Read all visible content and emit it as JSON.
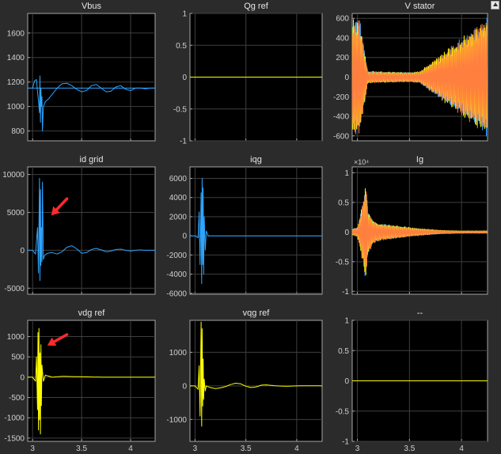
{
  "chart_data": [
    {
      "type": "line",
      "title": "Vbus",
      "xlabel": "",
      "ylabel": "",
      "xlim": [
        2.95,
        4.25
      ],
      "ylim": [
        720,
        1760
      ],
      "xticks": [
        3,
        3.5,
        4
      ],
      "xtick_labels": [
        "",
        "",
        ""
      ],
      "yticks": [
        800,
        1000,
        1200,
        1400,
        1600
      ],
      "ytick_labels": [
        "800",
        "1000",
        "1200",
        "1400",
        "1600"
      ],
      "grid": true,
      "series": [
        {
          "color": "#2fa4ff",
          "x": [
            2.95,
            3.0,
            3.02,
            3.04,
            3.05,
            3.06,
            3.07,
            3.075,
            3.08,
            3.085,
            3.09,
            3.095,
            3.1,
            3.11,
            3.13,
            3.16,
            3.2,
            3.25,
            3.3,
            3.35,
            3.4,
            3.45,
            3.5,
            3.55,
            3.6,
            3.65,
            3.7,
            3.75,
            3.8,
            3.85,
            3.9,
            3.95,
            4.0,
            4.05,
            4.1,
            4.15,
            4.2,
            4.25
          ],
          "y": [
            1150,
            1150,
            1210,
            1220,
            1120,
            1050,
            950,
            1250,
            870,
            1150,
            1000,
            1080,
            800,
            1000,
            1040,
            1060,
            1100,
            1150,
            1185,
            1190,
            1170,
            1140,
            1120,
            1130,
            1170,
            1180,
            1150,
            1120,
            1125,
            1160,
            1170,
            1140,
            1130,
            1150,
            1150,
            1145,
            1150,
            1150
          ]
        },
        {
          "color": "#2fa4ff",
          "x": [
            2.95,
            4.25
          ],
          "y": [
            1150,
            1150
          ]
        }
      ]
    },
    {
      "type": "line",
      "title": "Qg ref",
      "xlabel": "",
      "ylabel": "",
      "xlim": [
        2.95,
        4.25
      ],
      "ylim": [
        -1,
        1
      ],
      "xticks": [
        3,
        3.5,
        4
      ],
      "xtick_labels": [
        "",
        "",
        ""
      ],
      "yticks": [
        -1,
        -0.5,
        0,
        0.5,
        1
      ],
      "ytick_labels": [
        "-1",
        "-0.5",
        "0",
        "0.5",
        "1"
      ],
      "grid": true,
      "series": [
        {
          "color": "#ffff00",
          "x": [
            2.95,
            4.25
          ],
          "y": [
            0,
            0
          ]
        }
      ]
    },
    {
      "type": "line",
      "title": "V stator",
      "xlabel": "",
      "ylabel": "",
      "xlim": [
        2.95,
        4.25
      ],
      "ylim": [
        -650,
        650
      ],
      "xticks": [
        3,
        3.5,
        4
      ],
      "xtick_labels": [
        "",
        "",
        ""
      ],
      "yticks": [
        -600,
        -400,
        -200,
        0,
        200,
        400,
        600
      ],
      "ytick_labels": [
        "-600",
        "-400",
        "-200",
        "0",
        "200",
        "400",
        "600"
      ],
      "grid": true,
      "series": [
        {
          "color": "#2fa4ff",
          "envelope_x": [
            2.95,
            3.0,
            3.02,
            3.1,
            3.5,
            3.6,
            4.25
          ],
          "envelope_y": [
            600,
            600,
            620,
            60,
            50,
            60,
            620
          ]
        },
        {
          "color": "#ffff00",
          "envelope_x": [
            2.95,
            3.0,
            3.02,
            3.1,
            3.5,
            3.6,
            4.25
          ],
          "envelope_y": [
            600,
            600,
            620,
            60,
            50,
            60,
            620
          ]
        },
        {
          "color": "#ff7f3f",
          "envelope_x": [
            2.95,
            3.0,
            3.02,
            3.1,
            3.5,
            3.6,
            4.25
          ],
          "envelope_y": [
            600,
            600,
            620,
            60,
            50,
            60,
            620
          ]
        }
      ]
    },
    {
      "type": "line",
      "title": "id grid",
      "xlabel": "",
      "ylabel": "",
      "xlim": [
        2.95,
        4.25
      ],
      "ylim": [
        -5800,
        11000
      ],
      "xticks": [
        3,
        3.5,
        4
      ],
      "xtick_labels": [
        "",
        "",
        ""
      ],
      "yticks": [
        -5000,
        0,
        5000,
        10000
      ],
      "ytick_labels": [
        "-5000",
        "0",
        "5000",
        "10000"
      ],
      "grid": true,
      "annotation_arrow": {
        "from": [
          3.35,
          6800
        ],
        "to": [
          3.19,
          4600
        ],
        "color": "#ff2a2a"
      },
      "series": [
        {
          "color": "#2fa4ff",
          "x": [
            2.95,
            3.0,
            3.03,
            3.05,
            3.06,
            3.07,
            3.075,
            3.08,
            3.085,
            3.09,
            3.095,
            3.1,
            3.11,
            3.12,
            3.15,
            3.2,
            3.25,
            3.3,
            3.35,
            3.4,
            3.45,
            3.5,
            3.55,
            3.6,
            3.65,
            3.7,
            3.75,
            3.8,
            3.85,
            3.9,
            3.95,
            4.0,
            4.05,
            4.1,
            4.15,
            4.2,
            4.25
          ],
          "y": [
            0,
            0,
            -500,
            3000,
            -3000,
            9500,
            -4000,
            8000,
            -2000,
            3000,
            -1500,
            9000,
            -1200,
            -700,
            -400,
            -300,
            -500,
            -200,
            400,
            600,
            200,
            -400,
            -300,
            100,
            250,
            50,
            -200,
            -100,
            100,
            150,
            0,
            -100,
            0,
            50,
            0,
            0,
            0
          ]
        }
      ]
    },
    {
      "type": "line",
      "title": "iqg",
      "xlabel": "",
      "ylabel": "",
      "xlim": [
        2.95,
        4.25
      ],
      "ylim": [
        -6100,
        7200
      ],
      "xticks": [
        3,
        3.5,
        4
      ],
      "xtick_labels": [
        "",
        "",
        ""
      ],
      "yticks": [
        -6000,
        -4000,
        -2000,
        0,
        2000,
        4000,
        6000
      ],
      "ytick_labels": [
        "-6000",
        "-4000",
        "-2000",
        "0",
        "2000",
        "4000",
        "6000"
      ],
      "grid": true,
      "series": [
        {
          "color": "#2fa4ff",
          "x": [
            2.95,
            3.0,
            3.03,
            3.04,
            3.05,
            3.06,
            3.065,
            3.07,
            3.075,
            3.08,
            3.085,
            3.09,
            3.1,
            3.11,
            3.13,
            3.2,
            3.5,
            4.25
          ],
          "y": [
            0,
            0,
            -200,
            2500,
            -3000,
            4500,
            -5000,
            6000,
            -3000,
            5000,
            -4000,
            2000,
            -1500,
            500,
            0,
            0,
            0,
            0
          ]
        }
      ]
    },
    {
      "type": "line",
      "title": "Ig",
      "xlabel": "",
      "ylabel": "",
      "xlim": [
        2.95,
        4.25
      ],
      "ylim": [
        -1.05,
        1.1
      ],
      "xticks": [
        3,
        3.5,
        4
      ],
      "xtick_labels": [
        "",
        "",
        ""
      ],
      "yticks": [
        -1,
        -0.5,
        0,
        0.5,
        1
      ],
      "ytick_labels": [
        "-1",
        "-0.5",
        "0",
        "0.5",
        "1"
      ],
      "y_exponent": "×10⁴",
      "grid": true,
      "series": [
        {
          "color": "#2fa4ff",
          "envelope_x": [
            2.95,
            3.0,
            3.05,
            3.08,
            3.1,
            3.15,
            3.2,
            3.4,
            3.6,
            3.8,
            4.0,
            4.25
          ],
          "envelope_y": [
            0.05,
            0.08,
            0.5,
            0.9,
            0.4,
            0.2,
            0.15,
            0.1,
            0.06,
            0.03,
            0.02,
            0.02
          ]
        },
        {
          "color": "#ffff00",
          "envelope_x": [
            2.95,
            3.0,
            3.05,
            3.08,
            3.1,
            3.15,
            3.2,
            3.4,
            3.6,
            3.8,
            4.0,
            4.25
          ],
          "envelope_y": [
            0.05,
            0.08,
            0.5,
            0.9,
            0.4,
            0.2,
            0.15,
            0.1,
            0.06,
            0.03,
            0.02,
            0.02
          ]
        },
        {
          "color": "#ff7f3f",
          "envelope_x": [
            2.95,
            3.0,
            3.05,
            3.08,
            3.1,
            3.15,
            3.2,
            3.4,
            3.6,
            3.8,
            4.0,
            4.25
          ],
          "envelope_y": [
            0.05,
            0.08,
            0.5,
            0.9,
            0.4,
            0.2,
            0.15,
            0.1,
            0.06,
            0.03,
            0.02,
            0.02
          ]
        }
      ]
    },
    {
      "type": "line",
      "title": "vdg ref",
      "xlabel": "",
      "ylabel": "",
      "xlim": [
        2.95,
        4.25
      ],
      "ylim": [
        -1580,
        1400
      ],
      "xticks": [
        3,
        3.5,
        4
      ],
      "xtick_labels": [
        "3",
        "3.5",
        "4"
      ],
      "yticks": [
        -1500,
        -1000,
        -500,
        0,
        500,
        1000
      ],
      "ytick_labels": [
        "-1500",
        "-1000",
        "-500",
        "0",
        "500",
        "1000"
      ],
      "grid": true,
      "annotation_arrow": {
        "from": [
          3.35,
          1050
        ],
        "to": [
          3.15,
          780
        ],
        "color": "#ff2a2a"
      },
      "series": [
        {
          "color": "#ffff00",
          "x": [
            2.95,
            3.0,
            3.03,
            3.04,
            3.05,
            3.055,
            3.06,
            3.065,
            3.07,
            3.075,
            3.08,
            3.085,
            3.09,
            3.095,
            3.1,
            3.11,
            3.13,
            3.2,
            3.3,
            3.5,
            3.7,
            4.0,
            4.25
          ],
          "y": [
            0,
            0,
            -100,
            500,
            -800,
            1100,
            -1300,
            1200,
            -1050,
            600,
            -1400,
            800,
            -700,
            300,
            150,
            -100,
            50,
            0,
            20,
            10,
            0,
            0,
            0
          ]
        }
      ]
    },
    {
      "type": "line",
      "title": "vqg ref",
      "xlabel": "",
      "ylabel": "",
      "xlim": [
        2.95,
        4.25
      ],
      "ylim": [
        -1650,
        1950
      ],
      "xticks": [
        3,
        3.5,
        4
      ],
      "xtick_labels": [
        "3",
        "3.5",
        "4"
      ],
      "yticks": [
        -1000,
        0,
        1000
      ],
      "ytick_labels": [
        "-1000",
        "0",
        "1000"
      ],
      "grid": true,
      "series": [
        {
          "color": "#ffff00",
          "x": [
            2.95,
            3.0,
            3.03,
            3.04,
            3.05,
            3.06,
            3.065,
            3.07,
            3.075,
            3.08,
            3.085,
            3.09,
            3.1,
            3.11,
            3.15,
            3.2,
            3.25,
            3.3,
            3.35,
            3.4,
            3.45,
            3.5,
            3.55,
            3.6,
            3.65,
            3.7,
            3.8,
            3.9,
            4.0,
            4.1,
            4.25
          ],
          "y": [
            0,
            0,
            -100,
            600,
            -900,
            1900,
            -1200,
            1700,
            -600,
            800,
            -400,
            200,
            -150,
            0,
            -50,
            -80,
            -60,
            -20,
            40,
            80,
            60,
            -10,
            -50,
            -30,
            20,
            30,
            0,
            -10,
            0,
            5,
            0
          ]
        }
      ]
    },
    {
      "type": "line",
      "title": "--",
      "xlabel": "",
      "ylabel": "",
      "xlim": [
        2.95,
        4.25
      ],
      "ylim": [
        -1,
        1
      ],
      "xticks": [
        3,
        3.5,
        4
      ],
      "xtick_labels": [
        "3",
        "3.5",
        "4"
      ],
      "yticks": [
        -1,
        -0.5,
        0,
        0.5,
        1
      ],
      "ytick_labels": [
        "-1",
        "-0.5",
        "0",
        "0.5",
        "1"
      ],
      "grid": true,
      "series": [
        {
          "color": "#ffff00",
          "x": [
            2.95,
            4.25
          ],
          "y": [
            0,
            0
          ]
        }
      ]
    }
  ]
}
